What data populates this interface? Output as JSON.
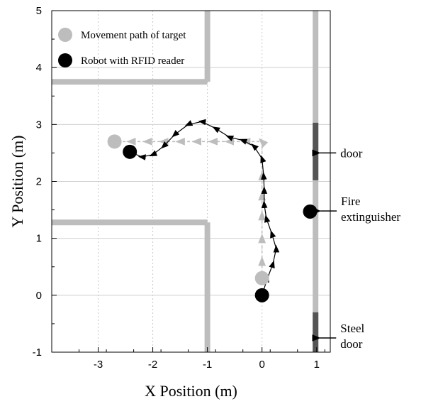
{
  "chart_data": {
    "type": "scatter",
    "xlabel": "X Position (m)",
    "ylabel": "Y Position (m)",
    "xlim": [
      -3.85,
      1.25
    ],
    "ylim": [
      -1,
      5
    ],
    "xticks": [
      -3,
      -2,
      -1,
      0,
      1
    ],
    "yticks": [
      -1,
      0,
      1,
      2,
      3,
      4,
      5
    ],
    "grid": true,
    "legend_position": "top-left",
    "legend": [
      {
        "label": "Movement path of target",
        "color": "#bdbdbd"
      },
      {
        "label": "Robot with RFID reader",
        "color": "#000000"
      }
    ],
    "series": [
      {
        "name": "Movement path of target",
        "color": "#bdbdbd",
        "x": [
          0.0,
          0.0,
          0.0,
          0.0,
          0.0,
          0.0,
          0.0,
          -0.3,
          -0.6,
          -0.9,
          -1.2,
          -1.5,
          -1.8,
          -2.1,
          -2.4,
          -2.7
        ],
        "y": [
          0.3,
          0.6,
          1.0,
          1.4,
          1.75,
          2.1,
          2.7,
          2.7,
          2.7,
          2.7,
          2.7,
          2.7,
          2.7,
          2.7,
          2.7,
          2.7
        ]
      },
      {
        "name": "Robot with RFID reader",
        "color": "#000000",
        "x": [
          0.0,
          0.1,
          0.2,
          0.26,
          0.18,
          0.08,
          0.04,
          0.04,
          0.03,
          0.0,
          -0.15,
          -0.35,
          -0.6,
          -0.85,
          -1.1,
          -1.35,
          -1.6,
          -1.8,
          -2.0,
          -2.2,
          -2.42
        ],
        "y": [
          0.0,
          0.3,
          0.55,
          0.82,
          1.08,
          1.35,
          1.6,
          1.85,
          2.1,
          2.4,
          2.62,
          2.72,
          2.78,
          2.93,
          3.05,
          3.0,
          2.82,
          2.62,
          2.47,
          2.43,
          2.52
        ]
      }
    ],
    "start_markers": [
      {
        "series": "Movement path of target",
        "x": -2.7,
        "y": 2.7
      },
      {
        "series": "Movement path of target",
        "x": 0.0,
        "y": 0.3
      },
      {
        "series": "Robot with RFID reader",
        "x": -2.42,
        "y": 2.52
      },
      {
        "series": "Robot with RFID reader",
        "x": 0.0,
        "y": 0.0
      }
    ],
    "obstacles": [
      {
        "name": "fire-extinguisher",
        "x": 0.88,
        "y": 1.47,
        "color": "#000000"
      }
    ],
    "walls": [
      {
        "color": "#bdbdbd",
        "x": [
          -1.0,
          -1.0
        ],
        "y": [
          3.75,
          5.0
        ]
      },
      {
        "color": "#bdbdbd",
        "x": [
          -3.85,
          -1.0
        ],
        "y": [
          3.75,
          3.75
        ]
      },
      {
        "color": "#bdbdbd",
        "x": [
          -3.85,
          -1.0
        ],
        "y": [
          1.28,
          1.28
        ]
      },
      {
        "color": "#bdbdbd",
        "x": [
          -1.0,
          -1.0
        ],
        "y": [
          1.28,
          -1.0
        ]
      },
      {
        "color": "#bdbdbd",
        "x": [
          0.98,
          0.98
        ],
        "y": [
          -1.0,
          5.0
        ]
      },
      {
        "color": "#555555",
        "x": [
          0.98,
          0.98
        ],
        "y": [
          2.02,
          3.03
        ]
      },
      {
        "color": "#555555",
        "x": [
          0.98,
          0.98
        ],
        "y": [
          -1.0,
          -0.3
        ]
      }
    ],
    "annotations": [
      {
        "lines": [
          "door"
        ],
        "pointer_x": 1.02,
        "pointer_y": 2.5
      },
      {
        "lines": [
          "Fire",
          "extinguisher"
        ],
        "pointer_x": 1.03,
        "pointer_y": 1.48
      },
      {
        "lines": [
          "Steel",
          "door"
        ],
        "pointer_x": 1.02,
        "pointer_y": -0.75
      }
    ]
  }
}
